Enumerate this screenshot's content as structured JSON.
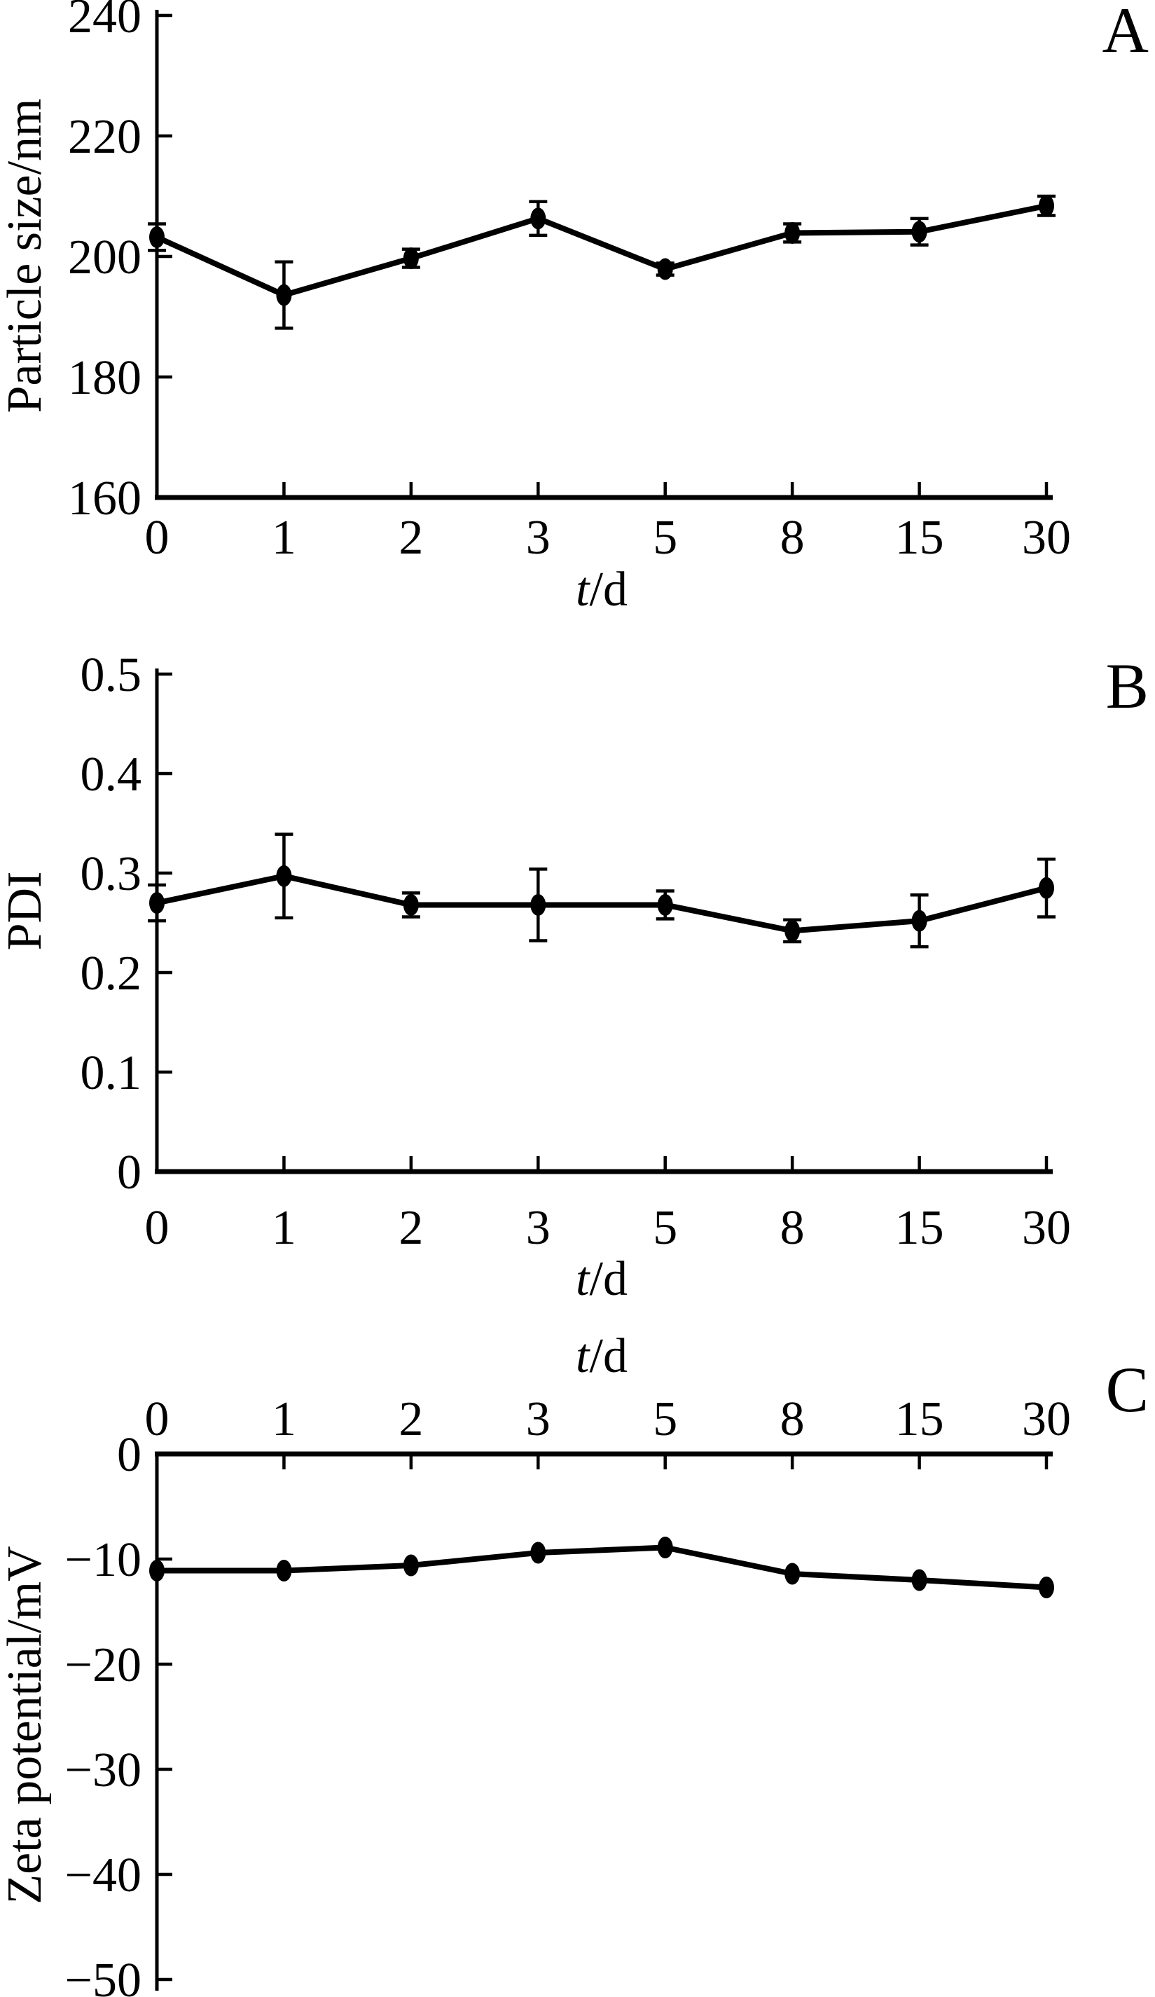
{
  "figure": {
    "background_color": "#ffffff",
    "ink_color": "#000000",
    "description": "Three stacked line charts with error bars sharing time categories"
  },
  "chart_data": [
    {
      "panel": "A",
      "type": "line",
      "x_label": "t/d",
      "x_label_parts": [
        {
          "text": "t",
          "italic": true
        },
        {
          "text": "/d",
          "italic": false
        }
      ],
      "y_label": "Particle size/nm",
      "categories": [
        "0",
        "1",
        "2",
        "3",
        "5",
        "8",
        "15",
        "30"
      ],
      "values": [
        203.2,
        193.6,
        199.7,
        206.3,
        197.9,
        203.9,
        204.1,
        208.4
      ],
      "errors": [
        2.2,
        5.5,
        1.5,
        2.8,
        1.0,
        1.5,
        2.2,
        1.6
      ],
      "error_bars": true,
      "ylim": [
        160,
        240
      ],
      "ytick_values": [
        160,
        180,
        200,
        220,
        240
      ],
      "ytick_labels": [
        "160",
        "180",
        "200",
        "220",
        "240"
      ],
      "x_axis_side": "bottom",
      "grid": false,
      "legend": "none",
      "marker": "filled-ellipse",
      "series_color": "#000000"
    },
    {
      "panel": "B",
      "type": "line",
      "x_label": "t/d",
      "x_label_parts": [
        {
          "text": "t",
          "italic": true
        },
        {
          "text": "/d",
          "italic": false
        }
      ],
      "y_label": "PDI",
      "categories": [
        "0",
        "1",
        "2",
        "3",
        "5",
        "8",
        "15",
        "30"
      ],
      "values": [
        0.27,
        0.297,
        0.268,
        0.268,
        0.268,
        0.242,
        0.252,
        0.285
      ],
      "errors": [
        0.018,
        0.042,
        0.012,
        0.036,
        0.014,
        0.011,
        0.026,
        0.029
      ],
      "error_bars": true,
      "ylim": [
        0,
        0.5
      ],
      "ytick_values": [
        0,
        0.1,
        0.2,
        0.3,
        0.4,
        0.5
      ],
      "ytick_labels": [
        "0",
        "0.1",
        "0.2",
        "0.3",
        "0.4",
        "0.5"
      ],
      "x_axis_side": "bottom",
      "grid": false,
      "legend": "none",
      "marker": "filled-ellipse",
      "series_color": "#000000"
    },
    {
      "panel": "C",
      "type": "line",
      "x_label": "t/d",
      "x_label_parts": [
        {
          "text": "t",
          "italic": true
        },
        {
          "text": "/d",
          "italic": false
        }
      ],
      "y_label": "Zeta potential/mV",
      "categories": [
        "0",
        "1",
        "2",
        "3",
        "5",
        "8",
        "15",
        "30"
      ],
      "values": [
        -11.1,
        -11.1,
        -10.6,
        -9.4,
        -8.9,
        -11.4,
        -12.0,
        -12.7
      ],
      "errors": [
        0,
        0,
        0,
        0,
        0,
        0,
        0,
        0
      ],
      "error_bars": false,
      "ylim": [
        -50,
        0
      ],
      "ytick_values": [
        0,
        -10,
        -20,
        -30,
        -40,
        -50
      ],
      "ytick_labels": [
        "0",
        "−10",
        "−20",
        "−30",
        "−40",
        "−50"
      ],
      "x_axis_side": "top",
      "grid": false,
      "legend": "none",
      "marker": "filled-ellipse",
      "series_color": "#000000"
    }
  ]
}
